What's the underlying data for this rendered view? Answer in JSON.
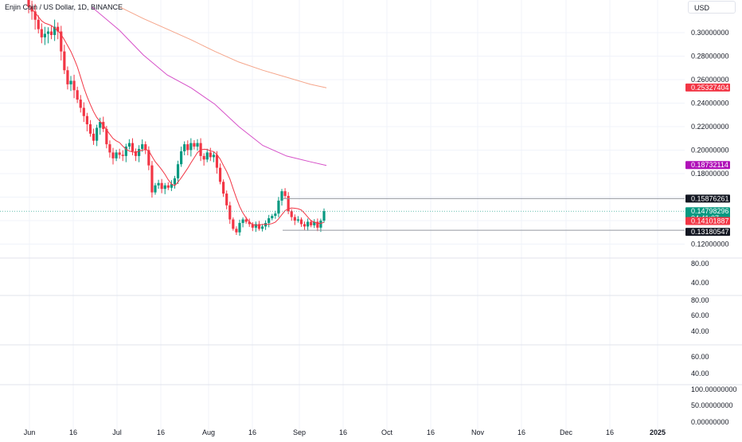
{
  "header": {
    "title": "Enjin Coin / US Dollar, 1D, BINANCE",
    "currency": "USD"
  },
  "colors": {
    "up": "#089981",
    "down": "#f23645",
    "ma_fast": "#f23645",
    "ma_mid": "#d650c8",
    "ma_slow": "#f5a58a",
    "grid": "#f0f3fa",
    "separator": "#e0e3eb",
    "last_price_bg": "#089981",
    "ma_slow_label_bg": "#f23645",
    "ma_mid_label_bg": "#b010b8",
    "level_label_bg": "#131722"
  },
  "chart_data": [
    {
      "type": "candlestick",
      "title": "Enjin Coin / US Dollar, 1D, BINANCE",
      "ylim": [
        0.115,
        0.32
      ],
      "x_tick_labels": [
        "Jun",
        "16",
        "Jul",
        "16",
        "Aug",
        "16",
        "Sep",
        "16",
        "Oct",
        "16",
        "Nov",
        "16",
        "Dec",
        "16",
        "2025"
      ],
      "y_tick_labels": [
        "0.30000000",
        "0.28000000",
        "0.26000000",
        "0.24000000",
        "0.22000000",
        "0.20000000",
        "0.18000000",
        "0.12000000"
      ],
      "ohlc_close": [
        0.322,
        0.318,
        0.311,
        0.303,
        0.296,
        0.299,
        0.301,
        0.298,
        0.305,
        0.301,
        0.284,
        0.268,
        0.256,
        0.259,
        0.251,
        0.243,
        0.236,
        0.229,
        0.222,
        0.214,
        0.208,
        0.219,
        0.224,
        0.218,
        0.205,
        0.198,
        0.193,
        0.198,
        0.196,
        0.195,
        0.203,
        0.206,
        0.199,
        0.195,
        0.201,
        0.205,
        0.2,
        0.187,
        0.164,
        0.17,
        0.172,
        0.167,
        0.17,
        0.168,
        0.171,
        0.176,
        0.188,
        0.199,
        0.205,
        0.2,
        0.206,
        0.203,
        0.206,
        0.195,
        0.192,
        0.198,
        0.194,
        0.196,
        0.185,
        0.173,
        0.163,
        0.153,
        0.141,
        0.133,
        0.13,
        0.138,
        0.141,
        0.139,
        0.137,
        0.134,
        0.137,
        0.133,
        0.135,
        0.138,
        0.142,
        0.144,
        0.146,
        0.157,
        0.165,
        0.161,
        0.148,
        0.143,
        0.14,
        0.141,
        0.137,
        0.135,
        0.139,
        0.136,
        0.139,
        0.134,
        0.14,
        0.14798296
      ],
      "last_price": "0.14798296",
      "countdown": "04:41:07",
      "price_labels": [
        "0.25327404",
        "0.18732114",
        "0.15876261",
        "0.14101887",
        "0.13180547"
      ],
      "moving_averages": [
        {
          "role": "fast",
          "label": "0.14101887"
        },
        {
          "role": "mid",
          "label": "0.18732114"
        },
        {
          "role": "slow",
          "label": "0.25327404"
        }
      ],
      "horizontal_levels": [
        "0.15876261",
        "0.13180547"
      ]
    },
    {
      "type": "line",
      "pane": 1,
      "y_tick_labels": [
        "80.00",
        "40.00"
      ]
    },
    {
      "type": "line",
      "pane": 2,
      "y_tick_labels": [
        "80.00",
        "60.00",
        "40.00"
      ]
    },
    {
      "type": "line",
      "pane": 3,
      "y_tick_labels": [
        "60.00",
        "40.00"
      ]
    },
    {
      "type": "line",
      "pane": 4,
      "y_tick_labels": [
        "100.00000000",
        "50.00000000",
        "0.00000000"
      ]
    }
  ]
}
